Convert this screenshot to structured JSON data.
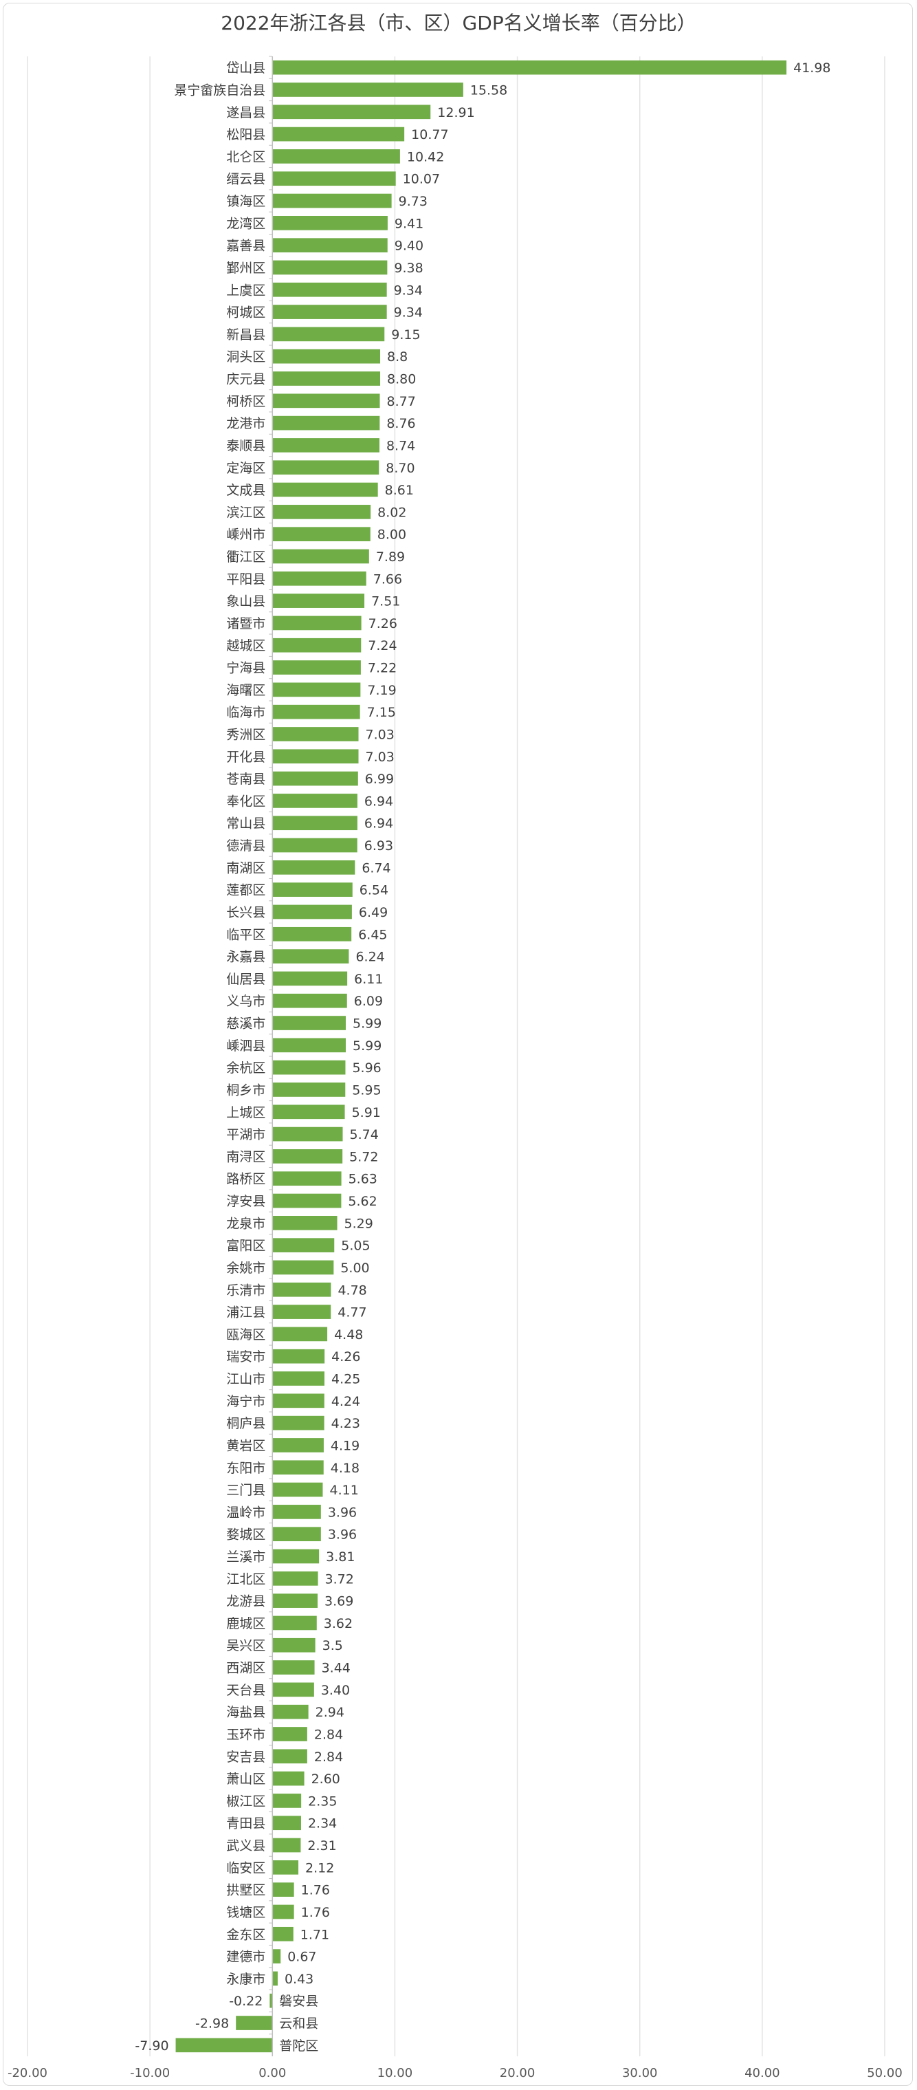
{
  "chart_data": {
    "type": "bar",
    "orientation": "horizontal",
    "title": "2022年浙江各县（市、区）GDP名义增长率（百分比）",
    "xlim": [
      -20,
      50
    ],
    "xticks": [
      "-20.00",
      "-10.00",
      "0.00",
      "10.00",
      "20.00",
      "30.00",
      "40.00",
      "50.00"
    ],
    "grid": true,
    "bar_color": "#70ad47",
    "categories": [
      "岱山县",
      "景宁畲族自治县",
      "遂昌县",
      "松阳县",
      "北仑区",
      "缙云县",
      "镇海区",
      "龙湾区",
      "嘉善县",
      "鄞州区",
      "上虞区",
      "柯城区",
      "新昌县",
      "洞头区",
      "庆元县",
      "柯桥区",
      "龙港市",
      "泰顺县",
      "定海区",
      "文成县",
      "滨江区",
      "嵊州市",
      "衢江区",
      "平阳县",
      "象山县",
      "诸暨市",
      "越城区",
      "宁海县",
      "海曙区",
      "临海市",
      "秀洲区",
      "开化县",
      "苍南县",
      "奉化区",
      "常山县",
      "德清县",
      "南湖区",
      "莲都区",
      "长兴县",
      "临平区",
      "永嘉县",
      "仙居县",
      "义乌市",
      "慈溪市",
      "嵊泗县",
      "余杭区",
      "桐乡市",
      "上城区",
      "平湖市",
      "南浔区",
      "路桥区",
      "淳安县",
      "龙泉市",
      "富阳区",
      "余姚市",
      "乐清市",
      "浦江县",
      "瓯海区",
      "瑞安市",
      "江山市",
      "海宁市",
      "桐庐县",
      "黄岩区",
      "东阳市",
      "三门县",
      "温岭市",
      "婺城区",
      "兰溪市",
      "江北区",
      "龙游县",
      "鹿城区",
      "吴兴区",
      "西湖区",
      "天台县",
      "海盐县",
      "玉环市",
      "安吉县",
      "萧山区",
      "椒江区",
      "青田县",
      "武义县",
      "临安区",
      "拱墅区",
      "钱塘区",
      "金东区",
      "建德市",
      "永康市",
      "磐安县",
      "云和县",
      "普陀区"
    ],
    "values": [
      41.98,
      15.58,
      12.91,
      10.77,
      10.42,
      10.07,
      9.73,
      9.41,
      9.4,
      9.38,
      9.34,
      9.34,
      9.15,
      8.8,
      8.8,
      8.77,
      8.76,
      8.74,
      8.7,
      8.61,
      8.02,
      8.0,
      7.89,
      7.66,
      7.51,
      7.26,
      7.24,
      7.22,
      7.19,
      7.15,
      7.03,
      7.03,
      6.99,
      6.94,
      6.94,
      6.93,
      6.74,
      6.54,
      6.49,
      6.45,
      6.24,
      6.11,
      6.09,
      5.99,
      5.99,
      5.96,
      5.95,
      5.91,
      5.74,
      5.72,
      5.63,
      5.62,
      5.29,
      5.05,
      5.0,
      4.78,
      4.77,
      4.48,
      4.26,
      4.25,
      4.24,
      4.23,
      4.19,
      4.18,
      4.11,
      3.96,
      3.96,
      3.81,
      3.72,
      3.69,
      3.62,
      3.5,
      3.44,
      3.4,
      2.94,
      2.84,
      2.84,
      2.6,
      2.35,
      2.34,
      2.31,
      2.12,
      1.76,
      1.76,
      1.71,
      0.67,
      0.43,
      -0.22,
      -2.98,
      -7.9
    ],
    "value_labels": [
      "41.98",
      "15.58",
      "12.91",
      "10.77",
      "10.42",
      "10.07",
      "9.73",
      "9.41",
      "9.40",
      "9.38",
      "9.34",
      "9.34",
      "9.15",
      "8.8",
      "8.80",
      "8.77",
      "8.76",
      "8.74",
      "8.70",
      "8.61",
      "8.02",
      "8.00",
      "7.89",
      "7.66",
      "7.51",
      "7.26",
      "7.24",
      "7.22",
      "7.19",
      "7.15",
      "7.03",
      "7.03",
      "6.99",
      "6.94",
      "6.94",
      "6.93",
      "6.74",
      "6.54",
      "6.49",
      "6.45",
      "6.24",
      "6.11",
      "6.09",
      "5.99",
      "5.99",
      "5.96",
      "5.95",
      "5.91",
      "5.74",
      "5.72",
      "5.63",
      "5.62",
      "5.29",
      "5.05",
      "5.00",
      "4.78",
      "4.77",
      "4.48",
      "4.26",
      "4.25",
      "4.24",
      "4.23",
      "4.19",
      "4.18",
      "4.11",
      "3.96",
      "3.96",
      "3.81",
      "3.72",
      "3.69",
      "3.62",
      "3.5",
      "3.44",
      "3.40",
      "2.94",
      "2.84",
      "2.84",
      "2.60",
      "2.35",
      "2.34",
      "2.31",
      "2.12",
      "1.76",
      "1.76",
      "1.71",
      "0.67",
      "0.43",
      "-0.22",
      "-2.98",
      "-7.90"
    ]
  }
}
